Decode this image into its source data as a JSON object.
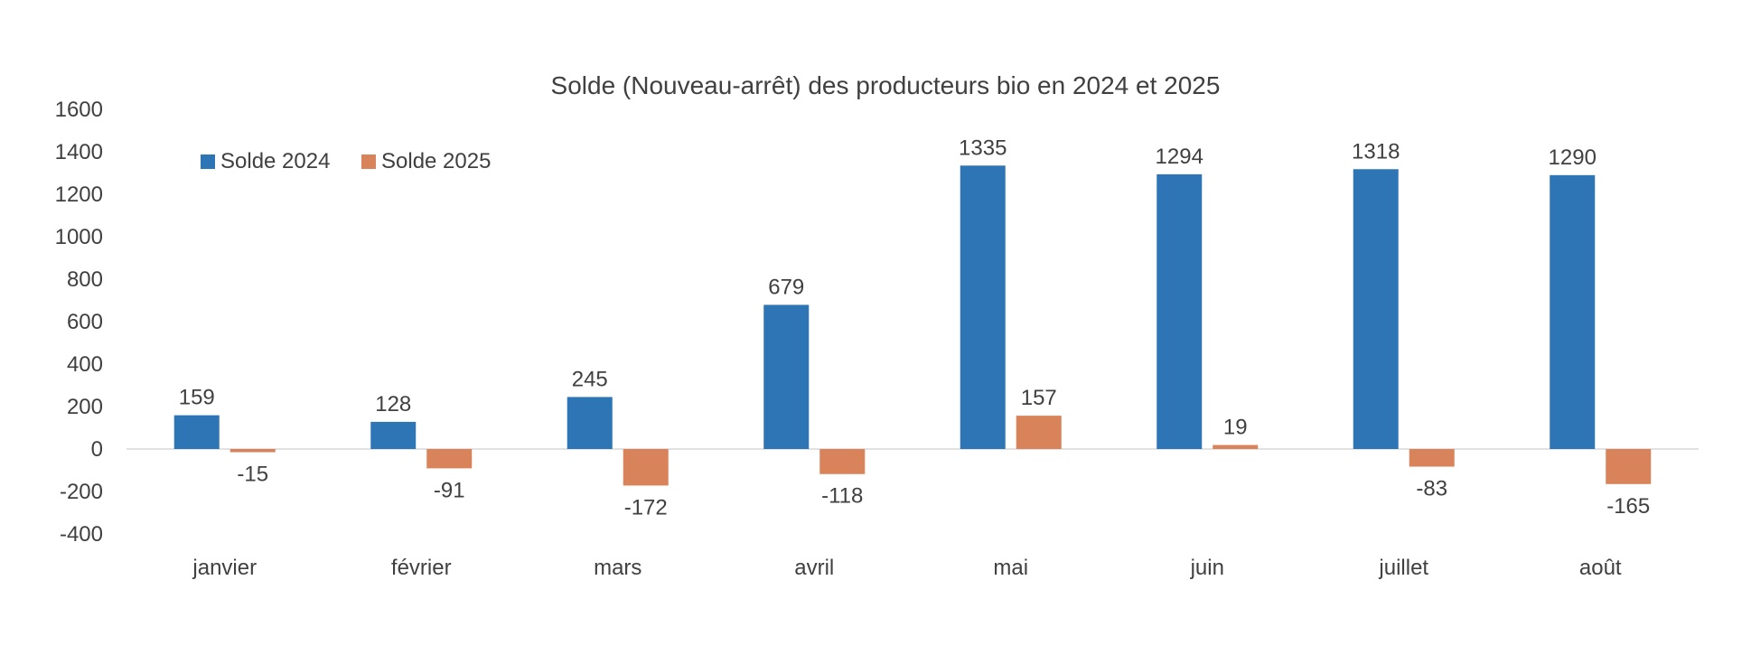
{
  "chart_data": {
    "type": "bar",
    "title": "Solde (Nouveau-arrêt) des producteurs bio en 2024 et 2025",
    "xlabel": "",
    "ylabel": "",
    "ylim": [
      -400,
      1600
    ],
    "yticks": [
      1600,
      1400,
      1200,
      1000,
      800,
      600,
      400,
      200,
      0,
      -200,
      -400
    ],
    "grid": false,
    "legend_position": "top-left",
    "categories": [
      "janvier",
      "février",
      "mars",
      "avril",
      "mai",
      "juin",
      "juillet",
      "août"
    ],
    "series": [
      {
        "name": "Solde 2024",
        "color": "#2E75B6",
        "values": [
          159,
          128,
          245,
          679,
          1335,
          1294,
          1318,
          1290
        ]
      },
      {
        "name": "Solde 2025",
        "color": "#D9835A",
        "values": [
          -15,
          -91,
          -172,
          -118,
          157,
          19,
          -83,
          -165
        ]
      }
    ]
  }
}
